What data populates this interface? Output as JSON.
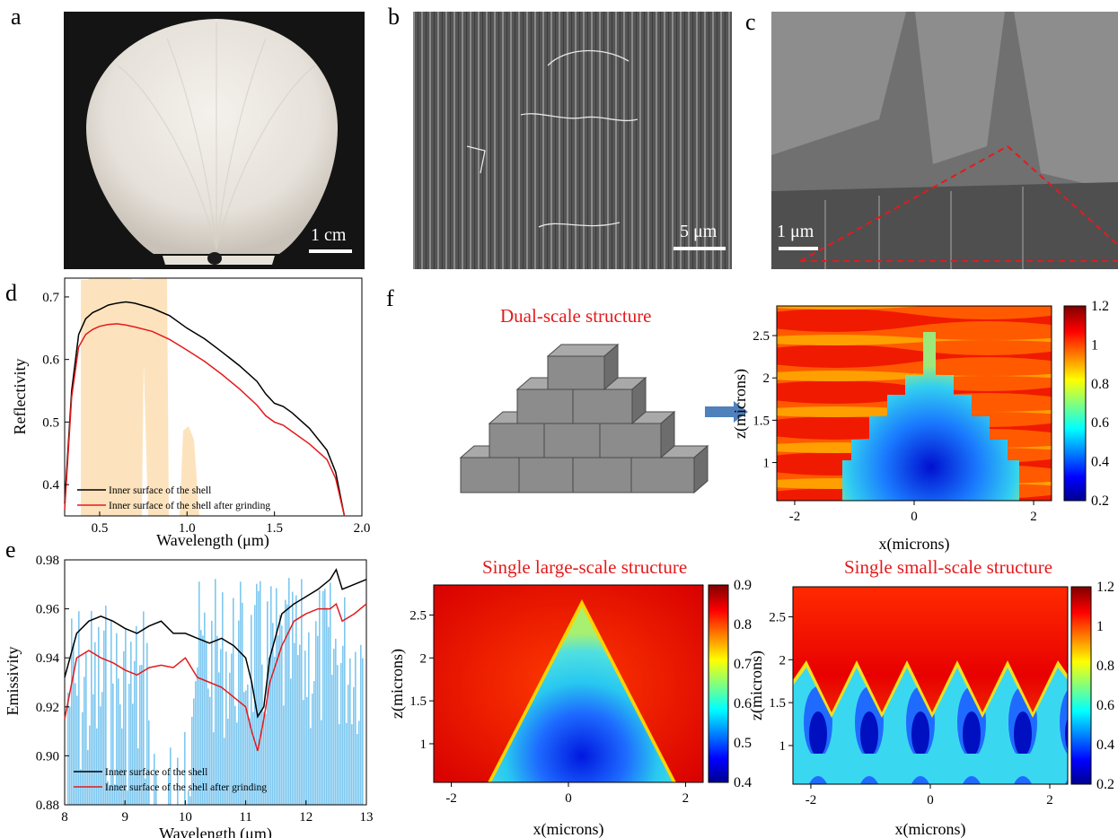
{
  "panels": {
    "a": {
      "letter": "a",
      "scale_label": "1 cm"
    },
    "b": {
      "letter": "b",
      "scale_label": "5 μm"
    },
    "c": {
      "letter": "c",
      "scale_label": "1 μm"
    },
    "d": {
      "letter": "d"
    },
    "e": {
      "letter": "e"
    },
    "f": {
      "letter": "f"
    }
  },
  "titles": {
    "dual": "Dual-scale structure",
    "large": "Single large-scale structure",
    "small": "Single small-scale structure"
  },
  "colors": {
    "black_series": "#000000",
    "red_series": "#e41a1c",
    "solar_band": "#fde3bd",
    "atm_band": "#7ec8f0",
    "title_red": "#e41a1c"
  },
  "chart_data": [
    {
      "id": "d",
      "type": "line",
      "xlabel": "Wavelength (μm)",
      "ylabel": "Reflectivity",
      "xlim": [
        0.3,
        2.0
      ],
      "ylim": [
        0.35,
        0.73
      ],
      "xticks": [
        "0.5",
        "1.0",
        "1.5",
        "2.0"
      ],
      "xtick_vals": [
        0.5,
        1.0,
        1.5,
        2.0
      ],
      "yticks": [
        "0.4",
        "0.5",
        "0.6",
        "0.7"
      ],
      "ytick_vals": [
        0.4,
        0.5,
        0.6,
        0.7
      ],
      "series": [
        {
          "name": "Inner surface of the shell",
          "color": "#000000",
          "x": [
            0.3,
            0.34,
            0.38,
            0.42,
            0.46,
            0.5,
            0.55,
            0.6,
            0.65,
            0.7,
            0.8,
            0.9,
            1.0,
            1.1,
            1.2,
            1.3,
            1.4,
            1.45,
            1.5,
            1.55,
            1.6,
            1.7,
            1.8,
            1.85,
            1.9
          ],
          "y": [
            0.37,
            0.55,
            0.64,
            0.665,
            0.675,
            0.68,
            0.687,
            0.69,
            0.692,
            0.69,
            0.682,
            0.67,
            0.65,
            0.633,
            0.612,
            0.59,
            0.565,
            0.545,
            0.53,
            0.525,
            0.515,
            0.49,
            0.455,
            0.42,
            0.35
          ]
        },
        {
          "name": "Inner surface of the shell after grinding",
          "color": "#e41a1c",
          "x": [
            0.3,
            0.34,
            0.38,
            0.42,
            0.46,
            0.5,
            0.55,
            0.6,
            0.65,
            0.7,
            0.8,
            0.9,
            1.0,
            1.1,
            1.2,
            1.3,
            1.4,
            1.45,
            1.5,
            1.55,
            1.6,
            1.7,
            1.8,
            1.85,
            1.9
          ],
          "y": [
            0.36,
            0.54,
            0.62,
            0.64,
            0.648,
            0.653,
            0.656,
            0.657,
            0.655,
            0.652,
            0.645,
            0.632,
            0.615,
            0.597,
            0.576,
            0.553,
            0.527,
            0.51,
            0.5,
            0.495,
            0.485,
            0.465,
            0.44,
            0.41,
            0.35
          ]
        }
      ],
      "legend": "bottom-left"
    },
    {
      "id": "e",
      "type": "line",
      "xlabel": "Wavelength (μm)",
      "ylabel": "Emissivity",
      "xlim": [
        8,
        13
      ],
      "ylim": [
        0.88,
        0.98
      ],
      "xticks": [
        "8",
        "9",
        "10",
        "11",
        "12",
        "13"
      ],
      "xtick_vals": [
        8,
        9,
        10,
        11,
        12,
        13
      ],
      "yticks": [
        "0.88",
        "0.90",
        "0.92",
        "0.94",
        "0.96",
        "0.98"
      ],
      "ytick_vals": [
        0.88,
        0.9,
        0.92,
        0.94,
        0.96,
        0.98
      ],
      "series": [
        {
          "name": "Inner surface of the shell",
          "color": "#000000",
          "x": [
            8.0,
            8.2,
            8.4,
            8.6,
            8.8,
            9.0,
            9.2,
            9.4,
            9.6,
            9.8,
            10.0,
            10.2,
            10.4,
            10.6,
            10.8,
            11.0,
            11.1,
            11.2,
            11.3,
            11.4,
            11.6,
            11.8,
            12.0,
            12.2,
            12.4,
            12.5,
            12.6,
            12.8,
            13.0
          ],
          "y": [
            0.932,
            0.95,
            0.955,
            0.957,
            0.955,
            0.952,
            0.95,
            0.953,
            0.955,
            0.95,
            0.95,
            0.948,
            0.946,
            0.948,
            0.945,
            0.94,
            0.93,
            0.916,
            0.92,
            0.94,
            0.958,
            0.962,
            0.965,
            0.968,
            0.972,
            0.976,
            0.968,
            0.97,
            0.972
          ]
        },
        {
          "name": "Inner surface of the shell after grinding",
          "color": "#e41a1c",
          "x": [
            8.0,
            8.2,
            8.4,
            8.6,
            8.8,
            9.0,
            9.2,
            9.4,
            9.6,
            9.8,
            10.0,
            10.2,
            10.4,
            10.6,
            10.8,
            11.0,
            11.1,
            11.2,
            11.3,
            11.4,
            11.6,
            11.8,
            12.0,
            12.2,
            12.4,
            12.5,
            12.6,
            12.8,
            13.0
          ],
          "y": [
            0.915,
            0.94,
            0.943,
            0.94,
            0.938,
            0.935,
            0.933,
            0.936,
            0.937,
            0.936,
            0.94,
            0.932,
            0.93,
            0.928,
            0.924,
            0.92,
            0.91,
            0.902,
            0.915,
            0.93,
            0.945,
            0.955,
            0.958,
            0.96,
            0.96,
            0.962,
            0.955,
            0.958,
            0.962
          ]
        }
      ],
      "legend": "bottom-left"
    },
    {
      "id": "f-dual",
      "type": "heatmap",
      "xlabel": "x(microns)",
      "ylabel": "z(microns)",
      "xticks": [
        "-2",
        "0",
        "2"
      ],
      "xtick_vals": [
        -2,
        0,
        2
      ],
      "yticks": [
        "1",
        "1.5",
        "2",
        "2.5"
      ],
      "ytick_vals": [
        1,
        1.5,
        2,
        2.5
      ],
      "xlim": [
        -2.3,
        2.3
      ],
      "ylim": [
        0.55,
        2.85
      ],
      "colorbar": {
        "ticks": [
          "0.2",
          "0.4",
          "0.6",
          "0.8",
          "1",
          "1.2"
        ],
        "tick_vals": [
          0.2,
          0.4,
          0.6,
          0.8,
          1.0,
          1.2
        ],
        "range": [
          0.2,
          1.2
        ]
      }
    },
    {
      "id": "f-large",
      "type": "heatmap",
      "xlabel": "x(microns)",
      "ylabel": "z(microns)",
      "xticks": [
        "-2",
        "0",
        "2"
      ],
      "xtick_vals": [
        -2,
        0,
        2
      ],
      "yticks": [
        "1",
        "1.5",
        "2",
        "2.5"
      ],
      "ytick_vals": [
        1,
        1.5,
        2,
        2.5
      ],
      "xlim": [
        -2.3,
        2.3
      ],
      "ylim": [
        0.55,
        2.85
      ],
      "colorbar": {
        "ticks": [
          "0.4",
          "0.5",
          "0.6",
          "0.7",
          "0.8",
          "0.9"
        ],
        "tick_vals": [
          0.4,
          0.5,
          0.6,
          0.7,
          0.8,
          0.9
        ],
        "range": [
          0.4,
          0.9
        ]
      }
    },
    {
      "id": "f-small",
      "type": "heatmap",
      "xlabel": "x(microns)",
      "ylabel": "z(microns)",
      "xticks": [
        "-2",
        "0",
        "2"
      ],
      "xtick_vals": [
        -2,
        0,
        2
      ],
      "yticks": [
        "1",
        "1.5",
        "2",
        "2.5"
      ],
      "ytick_vals": [
        1,
        1.5,
        2,
        2.5
      ],
      "xlim": [
        -2.3,
        2.3
      ],
      "ylim": [
        0.55,
        2.85
      ],
      "colorbar": {
        "ticks": [
          "0.2",
          "0.4",
          "0.6",
          "0.8",
          "1",
          "1.2"
        ],
        "tick_vals": [
          0.2,
          0.4,
          0.6,
          0.8,
          1.0,
          1.2
        ],
        "range": [
          0.2,
          1.2
        ]
      }
    }
  ]
}
